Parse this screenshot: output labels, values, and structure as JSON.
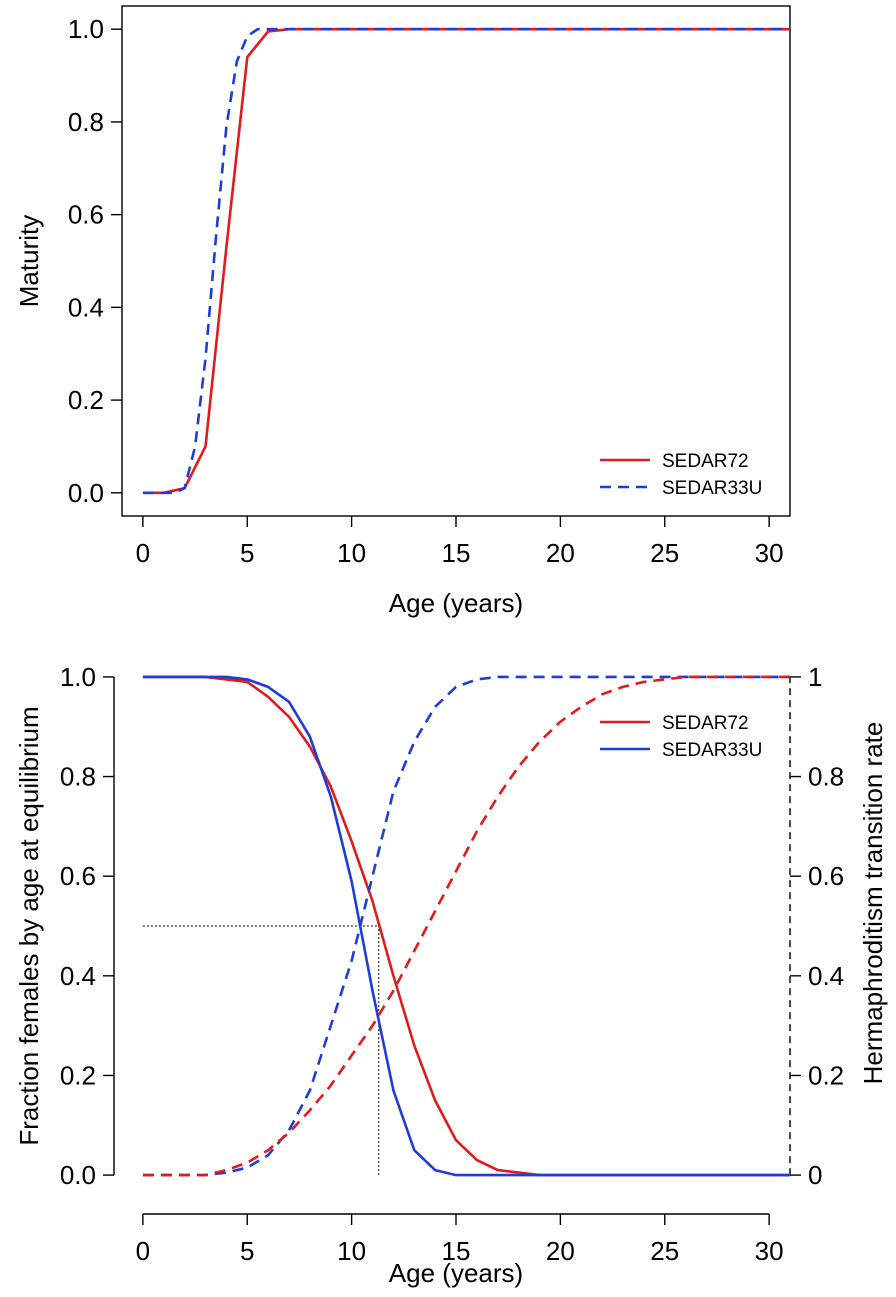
{
  "chart_data": [
    {
      "type": "line",
      "xlabel": "Age (years)",
      "ylabel": "Maturity",
      "xlim": [
        -1,
        31
      ],
      "ylim": [
        -0.05,
        1.05
      ],
      "xticks": [
        "0",
        "5",
        "10",
        "15",
        "20",
        "25",
        "30"
      ],
      "yticks": [
        "0.0",
        "0.2",
        "0.4",
        "0.6",
        "0.8",
        "1.0"
      ],
      "frame": "box",
      "legend_position": "bottom-right",
      "series": [
        {
          "name": "SEDAR72",
          "color": "#e31a1c",
          "style": "solid",
          "x": [
            0,
            1,
            2,
            3,
            4,
            5,
            6,
            7,
            8,
            9,
            10,
            15,
            20,
            25,
            30,
            31
          ],
          "y": [
            0.0,
            0.0,
            0.01,
            0.1,
            0.53,
            0.94,
            0.995,
            1.0,
            1.0,
            1.0,
            1.0,
            1.0,
            1.0,
            1.0,
            1.0,
            1.0
          ]
        },
        {
          "name": "SEDAR33U",
          "color": "#1e3cdc",
          "style": "dashed",
          "x": [
            0,
            1,
            1.5,
            2,
            2.5,
            3,
            3.5,
            4,
            4.5,
            5,
            5.5,
            6,
            7,
            8,
            10,
            15,
            20,
            25,
            30,
            31
          ],
          "y": [
            0.0,
            0.0,
            0.0,
            0.01,
            0.1,
            0.29,
            0.55,
            0.79,
            0.93,
            0.985,
            1.0,
            1.0,
            1.0,
            1.0,
            1.0,
            1.0,
            1.0,
            1.0,
            1.0,
            1.0
          ]
        }
      ]
    },
    {
      "type": "line",
      "xlabel": "Age (years)",
      "ylabel": "Fraction females by age at equilibrium",
      "ylabel_right": "Hermaphroditism transition rate",
      "xlim": [
        -1,
        31
      ],
      "ylim": [
        -0.05,
        1.05
      ],
      "xticks": [
        "0",
        "5",
        "10",
        "15",
        "20",
        "25",
        "30"
      ],
      "yticks": [
        "0.0",
        "0.2",
        "0.4",
        "0.6",
        "0.8",
        "1.0"
      ],
      "yticks_right": [
        "0",
        "0.2",
        "0.4",
        "0.6",
        "0.8",
        "1"
      ],
      "frame": "open",
      "legend_position": "right",
      "reference_lines": {
        "hline_y": 0.5,
        "hline_x": [
          0,
          11.3
        ],
        "vline_x": 11.3,
        "vline_y": [
          0,
          0.5
        ],
        "right_axis_dashed_x": 31
      },
      "series": [
        {
          "name": "SEDAR72",
          "color": "#e31a1c",
          "style": "solid",
          "axis": "left",
          "x": [
            0,
            2,
            3,
            4,
            5,
            6,
            7,
            8,
            9,
            10,
            11,
            12,
            13,
            14,
            15,
            16,
            17,
            18,
            19,
            20,
            25,
            31
          ],
          "y": [
            1.0,
            1.0,
            1.0,
            0.995,
            0.99,
            0.96,
            0.92,
            0.86,
            0.78,
            0.67,
            0.55,
            0.4,
            0.26,
            0.15,
            0.07,
            0.03,
            0.01,
            0.005,
            0.0,
            0.0,
            0.0,
            0.0
          ]
        },
        {
          "name": "SEDAR33U",
          "color": "#1e3cdc",
          "style": "solid",
          "axis": "left",
          "x": [
            0,
            2,
            3,
            4,
            5,
            6,
            7,
            8,
            9,
            10,
            11,
            12,
            13,
            14,
            15,
            16,
            20,
            25,
            31
          ],
          "y": [
            1.0,
            1.0,
            1.0,
            1.0,
            0.995,
            0.98,
            0.95,
            0.88,
            0.76,
            0.59,
            0.37,
            0.17,
            0.05,
            0.01,
            0.0,
            0.0,
            0.0,
            0.0,
            0.0
          ]
        },
        {
          "color": "#1e3cdc",
          "style": "dashed",
          "axis": "right",
          "x": [
            0,
            2,
            3,
            4,
            5,
            6,
            7,
            8,
            9,
            10,
            11,
            12,
            13,
            14,
            15,
            16,
            17,
            18,
            20,
            25,
            31
          ],
          "y": [
            0.0,
            0.0,
            0.0,
            0.005,
            0.015,
            0.04,
            0.09,
            0.17,
            0.3,
            0.43,
            0.6,
            0.77,
            0.87,
            0.94,
            0.98,
            0.995,
            1.0,
            1.0,
            1.0,
            1.0,
            1.0
          ]
        },
        {
          "color": "#e31a1c",
          "style": "dashed",
          "axis": "right",
          "x": [
            0,
            2,
            3,
            4,
            5,
            6,
            7,
            8,
            9,
            10,
            11,
            12,
            13,
            14,
            15,
            16,
            17,
            18,
            19,
            20,
            21,
            22,
            23,
            24,
            25,
            26,
            28,
            31
          ],
          "y": [
            0.0,
            0.0,
            0.0,
            0.01,
            0.025,
            0.05,
            0.085,
            0.13,
            0.18,
            0.24,
            0.3,
            0.37,
            0.45,
            0.53,
            0.61,
            0.69,
            0.76,
            0.82,
            0.87,
            0.91,
            0.94,
            0.965,
            0.98,
            0.99,
            0.995,
            1.0,
            1.0,
            1.0
          ]
        }
      ]
    }
  ]
}
